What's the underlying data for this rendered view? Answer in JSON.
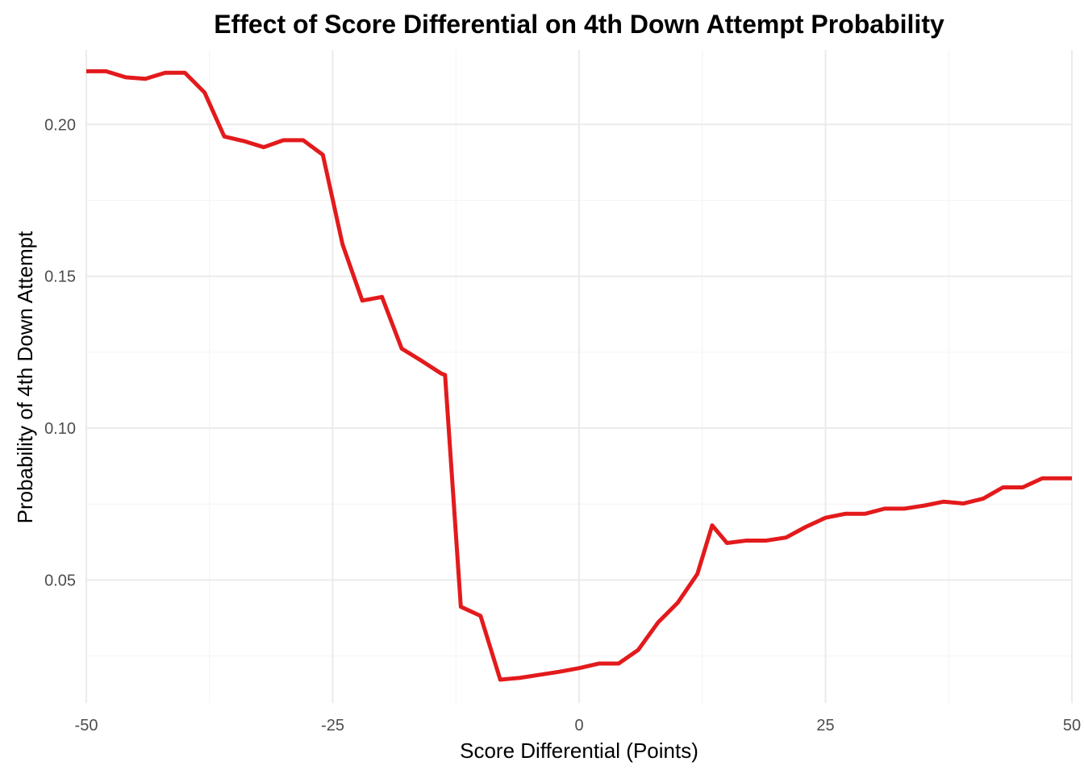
{
  "chart_data": {
    "type": "line",
    "title": "Effect of Score Differential on 4th Down Attempt Probability",
    "xlabel": "Score Differential (Points)",
    "ylabel": "Probability of 4th Down Attempt",
    "xlim": [
      -50,
      50
    ],
    "ylim": [
      0.0095,
      0.2245
    ],
    "x_ticks": [
      -50,
      -25,
      0,
      25,
      50
    ],
    "x_tick_labels": [
      "-50",
      "-25",
      "0",
      "25",
      "50"
    ],
    "y_ticks": [
      0.05,
      0.1,
      0.15,
      0.2
    ],
    "y_tick_labels": [
      "0.05",
      "0.10",
      "0.15",
      "0.20"
    ],
    "grid": true,
    "legend": "none",
    "line_color": "#e31a1c",
    "series": [
      {
        "x": [
          -50,
          -48,
          -46,
          -44,
          -42,
          -40,
          -38,
          -36,
          -34,
          -32,
          -30,
          -28,
          -26,
          -24,
          -22,
          -20,
          -18,
          -16,
          -14,
          -13.6,
          -12,
          -10,
          -8,
          -6,
          -4,
          -2,
          0,
          2,
          4,
          6,
          8,
          10,
          12,
          13.5,
          15,
          17,
          19,
          21,
          23,
          25,
          27,
          29,
          31,
          33,
          35,
          37,
          39,
          41,
          43,
          45,
          47,
          49,
          50
        ],
        "y": [
          0.2175,
          0.2175,
          0.2155,
          0.215,
          0.217,
          0.217,
          0.2105,
          0.196,
          0.1945,
          0.1925,
          0.1948,
          0.1948,
          0.19,
          0.1605,
          0.142,
          0.1432,
          0.1262,
          0.1222,
          0.118,
          0.1175,
          0.0412,
          0.0382,
          0.0172,
          0.0178,
          0.0188,
          0.0198,
          0.021,
          0.0225,
          0.0225,
          0.027,
          0.036,
          0.0425,
          0.052,
          0.068,
          0.0622,
          0.063,
          0.063,
          0.064,
          0.0675,
          0.0705,
          0.0718,
          0.0718,
          0.0735,
          0.0735,
          0.0745,
          0.0758,
          0.0752,
          0.0768,
          0.0805,
          0.0805,
          0.0835,
          0.0835,
          0.0835
        ]
      }
    ]
  }
}
